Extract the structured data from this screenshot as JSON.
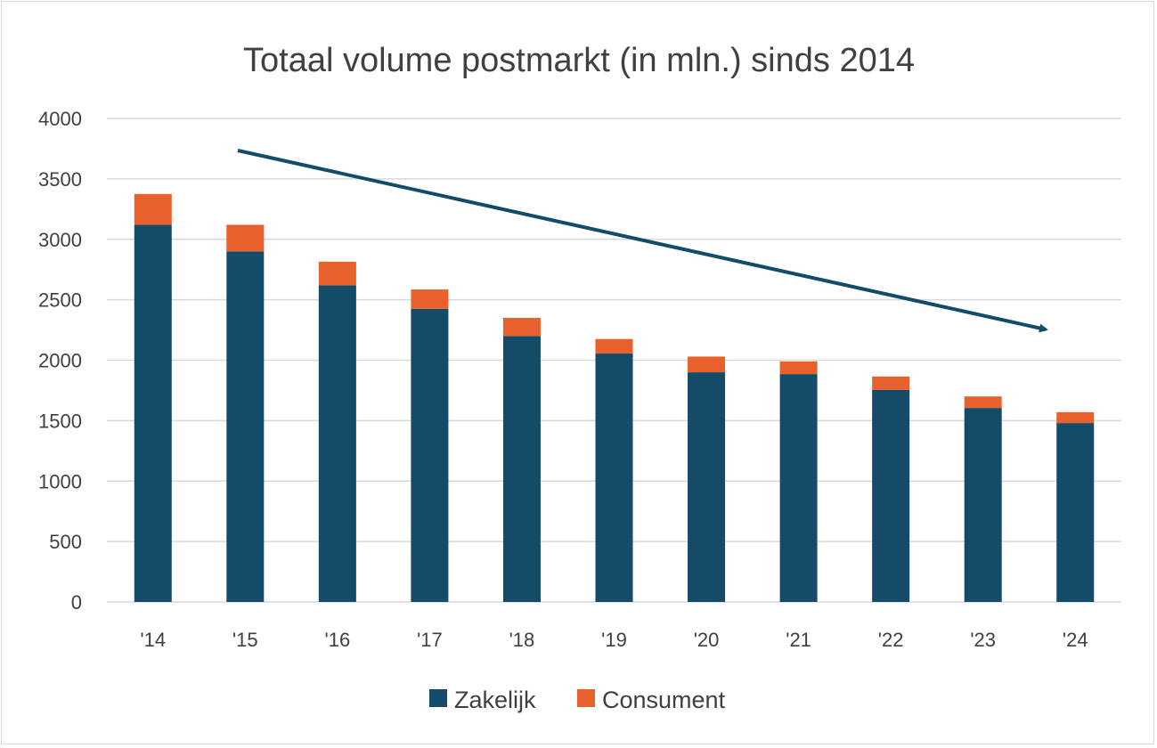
{
  "chart_data": {
    "type": "bar",
    "stacked": true,
    "title": "Totaal volume postmarkt (in mln.) sinds 2014",
    "xlabel": "",
    "ylabel": "",
    "categories": [
      "'14",
      "'15",
      "'16",
      "'17",
      "'18",
      "'19",
      "'20",
      "'21",
      "'22",
      "'23",
      "'24"
    ],
    "series": [
      {
        "name": "Zakelijk",
        "color": "#134b69",
        "values": [
          3120,
          2900,
          2620,
          2425,
          2200,
          2055,
          1900,
          1885,
          1755,
          1605,
          1480
        ]
      },
      {
        "name": "Consument",
        "color": "#e8602c",
        "values": [
          255,
          220,
          195,
          160,
          150,
          120,
          130,
          105,
          110,
          95,
          90
        ]
      }
    ],
    "ylim": [
      0,
      4000
    ],
    "yticks": [
      0,
      500,
      1000,
      1500,
      2000,
      2500,
      3000,
      3500,
      4000
    ],
    "grid": true,
    "gridline_color": "#d9d9d9",
    "legend": "bottom",
    "annotations": [
      {
        "kind": "trend-arrow",
        "direction": "down",
        "color": "#134b69"
      }
    ]
  }
}
